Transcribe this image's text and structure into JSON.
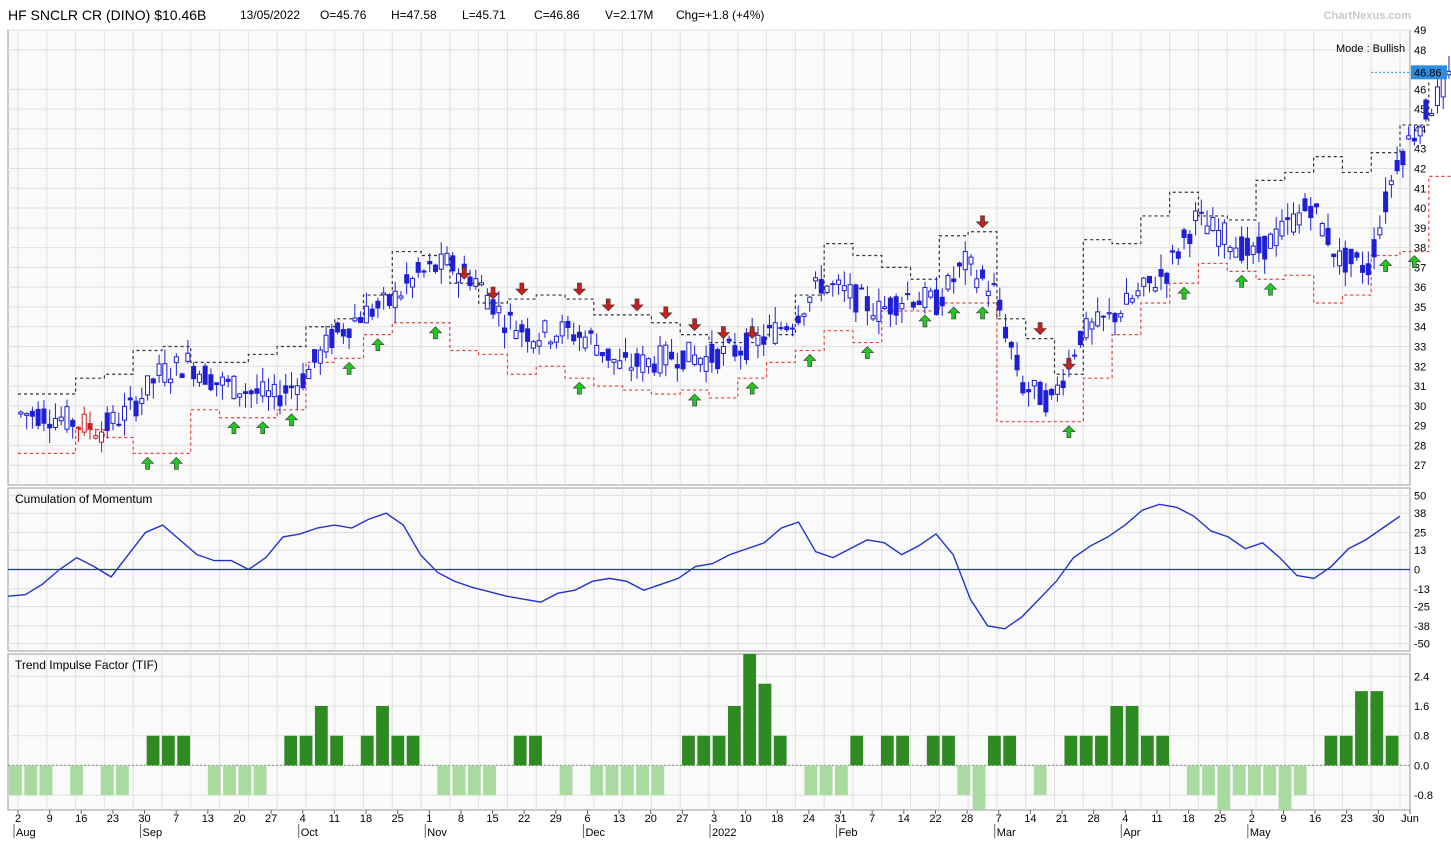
{
  "header": {
    "title": "HF SNCLR CR (DINO) $10.46B",
    "date": "13/05/2022",
    "open": "O=45.76",
    "high": "H=47.58",
    "low": "L=45.71",
    "close": "C=46.86",
    "volume": "V=2.17M",
    "change": "Chg=+1.8 (+4%)"
  },
  "watermark": "ChartNexus.com",
  "colors": {
    "up": "#1f1fd6",
    "down": "#c81e1e",
    "grid": "#e0e0e0",
    "momentum": "#2233cc",
    "tif_strong": "#2e8b22",
    "tif_weak": "#a9dba0",
    "stop_red": "#e84040",
    "stop_black": "#333333",
    "arrow_up": "#22c722",
    "arrow_down": "#c81e1e",
    "last_price_bg": "#2a8fe0"
  },
  "chart_data": [
    {
      "type": "candlestick",
      "title": "",
      "mode_label": "Mode : Bullish",
      "last_price_label": "46.86",
      "ylim": [
        26,
        49
      ],
      "yticks": [
        27,
        28,
        29,
        30,
        31,
        32,
        33,
        34,
        35,
        36,
        37,
        38,
        39,
        40,
        41,
        42,
        43,
        44,
        45,
        46,
        48,
        49
      ],
      "grid": true,
      "weekly_close": [
        29.6,
        29.2,
        28.8,
        29.8,
        31.6,
        32.2,
        31.2,
        30.8,
        30.4,
        31.4,
        33.4,
        34.6,
        35.2,
        36.6,
        37.2,
        36.4,
        34.4,
        33.6,
        33.8,
        33.4,
        32.0,
        32.2,
        32.6,
        32.4,
        32.8,
        33.4,
        34.4,
        36.2,
        35.6,
        34.8,
        35.6,
        35.2,
        37.2,
        35.8,
        31.0,
        30.2,
        33.6,
        34.4,
        35.6,
        36.8,
        39.4,
        38.6,
        37.6,
        38.8,
        40.2,
        37.4,
        37.0,
        42.4,
        44.8,
        46.86
      ],
      "stop_support_red": [
        27.6,
        27.6,
        28.8,
        28.4,
        27.6,
        27.6,
        29.8,
        29.4,
        29.4,
        29.8,
        32.2,
        32.4,
        33.6,
        34.2,
        34.2,
        32.8,
        32.6,
        31.6,
        32.0,
        31.4,
        31.0,
        30.8,
        30.6,
        30.8,
        30.4,
        31.4,
        32.2,
        32.8,
        33.8,
        33.2,
        34.8,
        34.8,
        35.2,
        35.2,
        29.2,
        29.2,
        29.2,
        31.4,
        33.6,
        35.2,
        36.2,
        37.2,
        36.8,
        36.4,
        36.6,
        35.2,
        35.6,
        37.6,
        37.8,
        41.6
      ],
      "stop_resist_black": [
        30.6,
        30.6,
        31.4,
        31.6,
        32.8,
        33.0,
        32.2,
        32.2,
        32.6,
        33.0,
        34.0,
        34.4,
        35.6,
        37.8,
        37.6,
        36.2,
        35.2,
        35.4,
        35.6,
        35.4,
        34.6,
        34.6,
        34.2,
        33.6,
        33.2,
        33.2,
        33.6,
        35.6,
        38.2,
        37.6,
        37.0,
        36.4,
        38.6,
        38.8,
        34.4,
        33.4,
        31.6,
        38.4,
        38.2,
        39.6,
        40.8,
        39.6,
        39.4,
        41.4,
        41.8,
        42.6,
        41.8,
        42.8,
        44.2,
        46.8
      ],
      "buy_signal_weeks": [
        4,
        5,
        7,
        8,
        9,
        11,
        12,
        14,
        19,
        23,
        25,
        27,
        29,
        31,
        32,
        33,
        36,
        40,
        42,
        43,
        47,
        48
      ],
      "sell_signal_weeks": [
        15,
        16,
        17,
        19,
        20,
        21,
        22,
        23,
        24,
        25,
        33,
        35,
        36
      ]
    },
    {
      "type": "line",
      "title": "Cumulation of Momentum",
      "ylim": [
        -55,
        55
      ],
      "yticks": [
        50,
        38,
        25,
        13,
        0,
        -13,
        -25,
        -38,
        -50
      ],
      "zero_line": true,
      "values": [
        -18,
        -17,
        -10,
        0,
        8,
        2,
        -5,
        10,
        25,
        30,
        20,
        10,
        6,
        6,
        0,
        8,
        22,
        24,
        28,
        30,
        28,
        34,
        38,
        30,
        10,
        -2,
        -8,
        -12,
        -15,
        -18,
        -20,
        -22,
        -16,
        -14,
        -8,
        -6,
        -8,
        -14,
        -10,
        -6,
        2,
        4,
        10,
        14,
        18,
        28,
        32,
        12,
        8,
        14,
        20,
        18,
        10,
        16,
        24,
        10,
        -20,
        -38,
        -40,
        -32,
        -20,
        -8,
        8,
        16,
        22,
        30,
        40,
        44,
        42,
        36,
        26,
        22,
        14,
        18,
        8,
        -4,
        -6,
        2,
        14,
        20,
        28,
        36
      ]
    },
    {
      "type": "bar",
      "title": "Trend Impulse Factor (TIF)",
      "ylim": [
        -1.2,
        3.0
      ],
      "yticks": [
        2.4,
        1.6,
        0.8,
        0.0,
        -0.8
      ],
      "values": [
        -0.8,
        -0.8,
        -0.8,
        0,
        -0.8,
        0,
        -0.8,
        -0.8,
        0,
        0.8,
        0.8,
        0.8,
        0,
        -0.8,
        -0.8,
        -0.8,
        -0.8,
        0,
        0.8,
        0.8,
        1.6,
        0.8,
        0,
        0.8,
        1.6,
        0.8,
        0.8,
        0,
        -0.8,
        -0.8,
        -0.8,
        -0.8,
        0,
        0.8,
        0.8,
        0,
        -0.8,
        0,
        -0.8,
        -0.8,
        -0.8,
        -0.8,
        -0.8,
        0,
        0.8,
        0.8,
        0.8,
        1.6,
        3.0,
        2.2,
        0.8,
        0,
        -0.8,
        -0.8,
        -0.8,
        0.8,
        0,
        0.8,
        0.8,
        0,
        0.8,
        0.8,
        -0.8,
        -1.2,
        0.8,
        0.8,
        0,
        -0.8,
        0,
        0.8,
        0.8,
        0.8,
        1.6,
        1.6,
        0.8,
        0.8,
        0,
        -0.8,
        -0.8,
        -1.2,
        -0.8,
        -0.8,
        -0.8,
        -1.2,
        -0.8,
        0,
        0.8,
        0.8,
        2.0,
        2.0,
        0.8
      ]
    }
  ],
  "x_axis": {
    "day_labels": [
      "2",
      "9",
      "16",
      "23",
      "30",
      "7",
      "13",
      "20",
      "27",
      "4",
      "11",
      "18",
      "25",
      "1",
      "8",
      "15",
      "22",
      "29",
      "6",
      "13",
      "20",
      "27",
      "3",
      "10",
      "18",
      "24",
      "31",
      "7",
      "14",
      "22",
      "28",
      "7",
      "14",
      "21",
      "28",
      "4",
      "11",
      "18",
      "25",
      "2",
      "9",
      "16",
      "23",
      "30",
      "Jun"
    ],
    "month_labels": [
      "Aug",
      "Sep",
      "Oct",
      "Nov",
      "Dec",
      "2022",
      "Feb",
      "Mar",
      "Apr",
      "May"
    ]
  }
}
